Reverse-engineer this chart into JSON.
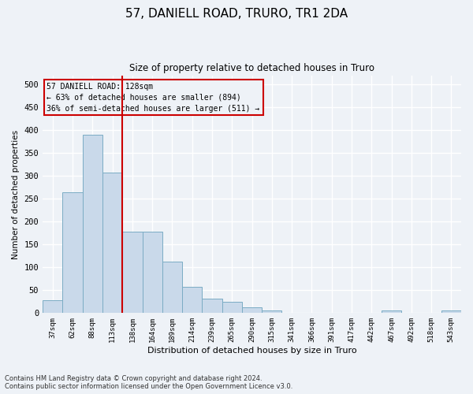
{
  "title1": "57, DANIELL ROAD, TRURO, TR1 2DA",
  "title2": "Size of property relative to detached houses in Truro",
  "xlabel": "Distribution of detached houses by size in Truro",
  "ylabel": "Number of detached properties",
  "categories": [
    "37sqm",
    "62sqm",
    "88sqm",
    "113sqm",
    "138sqm",
    "164sqm",
    "189sqm",
    "214sqm",
    "239sqm",
    "265sqm",
    "290sqm",
    "315sqm",
    "341sqm",
    "366sqm",
    "391sqm",
    "417sqm",
    "442sqm",
    "467sqm",
    "492sqm",
    "518sqm",
    "543sqm"
  ],
  "values": [
    28,
    265,
    390,
    308,
    178,
    178,
    113,
    57,
    32,
    25,
    13,
    6,
    0,
    0,
    0,
    0,
    0,
    5,
    0,
    0,
    5
  ],
  "bar_color": "#c9d9ea",
  "bar_edge_color": "#7bacc4",
  "marker_color": "#cc0000",
  "annotation_lines": [
    "57 DANIELL ROAD: 128sqm",
    "← 63% of detached houses are smaller (894)",
    "36% of semi-detached houses are larger (511) →"
  ],
  "annotation_box_color": "#cc0000",
  "ylim": [
    0,
    520
  ],
  "yticks": [
    0,
    50,
    100,
    150,
    200,
    250,
    300,
    350,
    400,
    450,
    500
  ],
  "footer1": "Contains HM Land Registry data © Crown copyright and database right 2024.",
  "footer2": "Contains public sector information licensed under the Open Government Licence v3.0.",
  "background_color": "#eef2f7",
  "grid_color": "#ffffff"
}
